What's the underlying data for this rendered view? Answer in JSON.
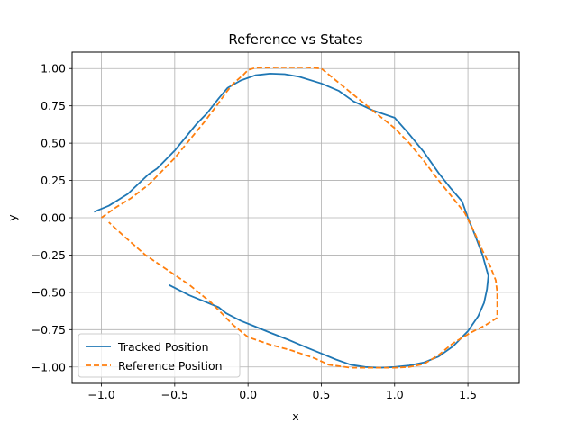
{
  "chart_data": {
    "type": "line",
    "title": "Reference vs States",
    "xlabel": "x",
    "ylabel": "y",
    "xlim": [
      -1.2,
      1.85
    ],
    "ylim": [
      -1.11,
      1.11
    ],
    "x_ticks": [
      -1.0,
      -0.5,
      0.0,
      0.5,
      1.0,
      1.5
    ],
    "x_tick_labels": [
      "−1.0",
      "−0.5",
      "0.0",
      "0.5",
      "1.0",
      "1.5"
    ],
    "y_ticks": [
      -1.0,
      -0.75,
      -0.5,
      -0.25,
      0.0,
      0.25,
      0.5,
      0.75,
      1.0
    ],
    "y_tick_labels": [
      "−1.00",
      "−0.75",
      "−0.50",
      "−0.25",
      "0.00",
      "0.25",
      "0.50",
      "0.75",
      "1.00"
    ],
    "grid": true,
    "legend_position": "lower-left",
    "series": [
      {
        "name": "Tracked Position",
        "color": "#1f77b4",
        "style": "solid",
        "points": [
          [
            -1.05,
            0.04
          ],
          [
            -0.95,
            0.08
          ],
          [
            -0.82,
            0.16
          ],
          [
            -0.68,
            0.29
          ],
          [
            -0.62,
            0.33
          ],
          [
            -0.5,
            0.45
          ],
          [
            -0.4,
            0.57
          ],
          [
            -0.35,
            0.63
          ],
          [
            -0.28,
            0.7
          ],
          [
            -0.2,
            0.8
          ],
          [
            -0.14,
            0.87
          ],
          [
            -0.05,
            0.92
          ],
          [
            0.05,
            0.955
          ],
          [
            0.15,
            0.966
          ],
          [
            0.25,
            0.962
          ],
          [
            0.35,
            0.945
          ],
          [
            0.5,
            0.9
          ],
          [
            0.62,
            0.85
          ],
          [
            0.72,
            0.78
          ],
          [
            0.85,
            0.72
          ],
          [
            1.0,
            0.67
          ],
          [
            1.1,
            0.56
          ],
          [
            1.2,
            0.44
          ],
          [
            1.3,
            0.3
          ],
          [
            1.38,
            0.2
          ],
          [
            1.46,
            0.11
          ],
          [
            1.5,
            0.0
          ],
          [
            1.55,
            -0.12
          ],
          [
            1.6,
            -0.25
          ],
          [
            1.64,
            -0.39
          ],
          [
            1.63,
            -0.48
          ],
          [
            1.61,
            -0.57
          ],
          [
            1.57,
            -0.66
          ],
          [
            1.5,
            -0.76
          ],
          [
            1.4,
            -0.86
          ],
          [
            1.3,
            -0.93
          ],
          [
            1.2,
            -0.97
          ],
          [
            1.1,
            -0.99
          ],
          [
            1.0,
            -1.0
          ],
          [
            0.9,
            -1.005
          ],
          [
            0.8,
            -1.0
          ],
          [
            0.7,
            -0.985
          ],
          [
            0.6,
            -0.95
          ],
          [
            0.5,
            -0.91
          ],
          [
            0.4,
            -0.87
          ],
          [
            0.28,
            -0.82
          ],
          [
            0.15,
            -0.77
          ],
          [
            0.05,
            -0.73
          ],
          [
            -0.05,
            -0.69
          ],
          [
            -0.15,
            -0.64
          ],
          [
            -0.2,
            -0.6
          ],
          [
            -0.3,
            -0.56
          ],
          [
            -0.4,
            -0.52
          ],
          [
            -0.48,
            -0.48
          ],
          [
            -0.54,
            -0.45
          ]
        ]
      },
      {
        "name": "Reference Position",
        "color": "#ff7f0e",
        "style": "dashed",
        "points": [
          [
            -1.0,
            0.0
          ],
          [
            -0.9,
            0.07
          ],
          [
            -0.8,
            0.13
          ],
          [
            -0.68,
            0.22
          ],
          [
            -0.6,
            0.3
          ],
          [
            -0.5,
            0.4
          ],
          [
            -0.4,
            0.52
          ],
          [
            -0.3,
            0.64
          ],
          [
            -0.2,
            0.77
          ],
          [
            -0.15,
            0.84
          ],
          [
            -0.1,
            0.9
          ],
          [
            -0.03,
            0.96
          ],
          [
            0.0,
            0.99
          ],
          [
            0.05,
            1.005
          ],
          [
            0.2,
            1.008
          ],
          [
            0.4,
            1.008
          ],
          [
            0.5,
            1.0
          ],
          [
            0.6,
            0.92
          ],
          [
            0.7,
            0.84
          ],
          [
            0.8,
            0.76
          ],
          [
            0.9,
            0.68
          ],
          [
            1.0,
            0.6
          ],
          [
            1.1,
            0.5
          ],
          [
            1.2,
            0.38
          ],
          [
            1.3,
            0.25
          ],
          [
            1.4,
            0.13
          ],
          [
            1.48,
            0.03
          ],
          [
            1.55,
            -0.11
          ],
          [
            1.6,
            -0.22
          ],
          [
            1.65,
            -0.32
          ],
          [
            1.69,
            -0.42
          ],
          [
            1.7,
            -0.5
          ],
          [
            1.7,
            -0.67
          ],
          [
            1.62,
            -0.72
          ],
          [
            1.52,
            -0.77
          ],
          [
            1.4,
            -0.84
          ],
          [
            1.3,
            -0.92
          ],
          [
            1.2,
            -0.98
          ],
          [
            1.1,
            -1.0
          ],
          [
            1.0,
            -1.005
          ],
          [
            0.85,
            -1.005
          ],
          [
            0.7,
            -1.005
          ],
          [
            0.55,
            -0.985
          ],
          [
            0.45,
            -0.94
          ],
          [
            0.3,
            -0.89
          ],
          [
            0.15,
            -0.85
          ],
          [
            0.0,
            -0.8
          ],
          [
            -0.1,
            -0.72
          ],
          [
            -0.25,
            -0.57
          ],
          [
            -0.4,
            -0.45
          ],
          [
            -0.55,
            -0.35
          ],
          [
            -0.7,
            -0.25
          ],
          [
            -0.85,
            -0.12
          ],
          [
            -0.95,
            -0.03
          ]
        ]
      }
    ]
  }
}
